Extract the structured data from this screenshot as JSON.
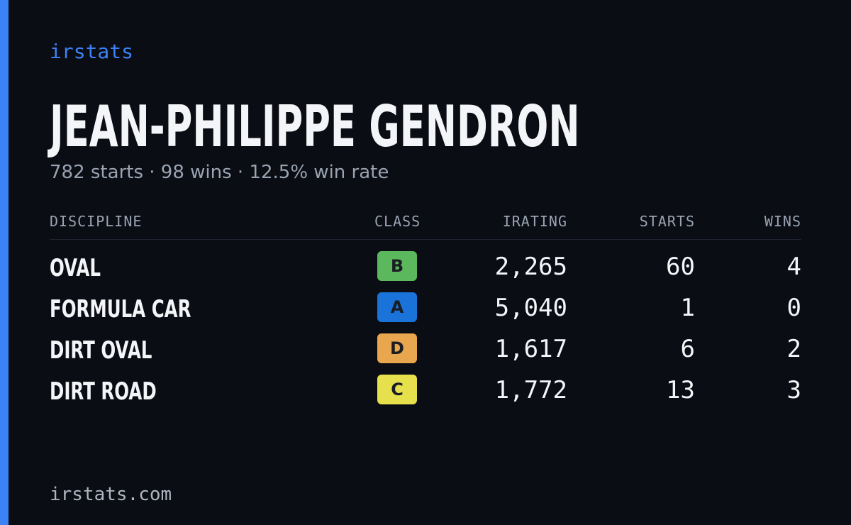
{
  "header": {
    "brand": "irstats",
    "name": "JEAN-PHILIPPE GENDRON",
    "subtitle": "782 starts · 98 wins · 12.5% win rate"
  },
  "table": {
    "columns": [
      "DISCIPLINE",
      "CLASS",
      "IRATING",
      "STARTS",
      "WINS"
    ],
    "rows": [
      {
        "discipline": "OVAL",
        "class": "B",
        "class_color": "#5cb85c",
        "irating": "2,265",
        "starts": 60,
        "wins": 4
      },
      {
        "discipline": "FORMULA CAR",
        "class": "A",
        "class_color": "#1a73d9",
        "irating": "5,040",
        "starts": 1,
        "wins": 0
      },
      {
        "discipline": "DIRT OVAL",
        "class": "D",
        "class_color": "#e8a64e",
        "irating": "1,617",
        "starts": 6,
        "wins": 2
      },
      {
        "discipline": "DIRT ROAD",
        "class": "C",
        "class_color": "#e6e04c",
        "irating": "1,772",
        "starts": 13,
        "wins": 3
      }
    ]
  },
  "footer": {
    "site": "irstats.com"
  }
}
